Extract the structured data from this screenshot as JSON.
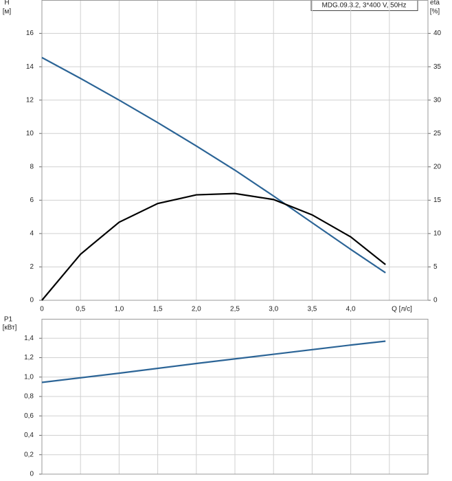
{
  "chart_data": [
    {
      "type": "line",
      "title": "MDG.09.3.2, 3*400 V, 50Hz",
      "y_label": "H",
      "y_unit": "[м]",
      "y2_label": "eta",
      "y2_unit": "[%]",
      "x_label": "Q [л/с]",
      "x": [
        0,
        0.5,
        1,
        1.5,
        2,
        2.5,
        3,
        3.5,
        4,
        4.45
      ],
      "series": [
        {
          "color": "#2b6496",
          "values": [
            14.55,
            13.3,
            12.0,
            10.65,
            9.25,
            7.8,
            6.25,
            4.65,
            3.05,
            1.65
          ]
        },
        {
          "color": "#000000",
          "axis": "y2",
          "values": [
            0,
            6.9,
            11.7,
            14.5,
            15.8,
            16.0,
            15.1,
            12.8,
            9.5,
            5.35
          ]
        }
      ],
      "xlim": [
        0,
        5
      ],
      "xticks": [
        0,
        {
          "value": 0.5,
          "label": "0,5"
        },
        {
          "value": 1,
          "label": "1,0"
        },
        {
          "value": 1.5,
          "label": "1,5"
        },
        {
          "value": 2,
          "label": "2,0"
        },
        {
          "value": 2.5,
          "label": "2,5"
        },
        {
          "value": 3,
          "label": "3,0"
        },
        {
          "value": 3.5,
          "label": "3,5"
        },
        {
          "value": 4,
          "label": "4,0"
        },
        {
          "value": 4.5,
          "label": null
        }
      ],
      "ylim": [
        0,
        18
      ],
      "yticks": [
        0,
        2,
        4,
        6,
        8,
        10,
        12,
        14,
        16
      ],
      "y2lim": [
        0,
        45
      ],
      "y2ticks": [
        0,
        5,
        10,
        15,
        20,
        25,
        30,
        35,
        40
      ],
      "grid": true
    },
    {
      "type": "line",
      "y_label": "P1",
      "y_unit": "[кВт]",
      "x": [
        0,
        1,
        2,
        3,
        4,
        4.45
      ],
      "series": [
        {
          "color": "#2b6496",
          "values": [
            0.945,
            1.04,
            1.14,
            1.235,
            1.33,
            1.37
          ]
        }
      ],
      "xlim": [
        0,
        5
      ],
      "ylim": [
        0,
        1.6
      ],
      "yticks": [
        0,
        {
          "value": 0.2,
          "label": "0,2"
        },
        {
          "value": 0.4,
          "label": "0,4"
        },
        {
          "value": 0.6,
          "label": "0,6"
        },
        {
          "value": 0.8,
          "label": "0,8"
        },
        {
          "value": 1.0,
          "label": "1,0"
        },
        {
          "value": 1.2,
          "label": "1,2"
        },
        {
          "value": 1.4,
          "label": "1,4"
        }
      ],
      "grid": true
    }
  ]
}
